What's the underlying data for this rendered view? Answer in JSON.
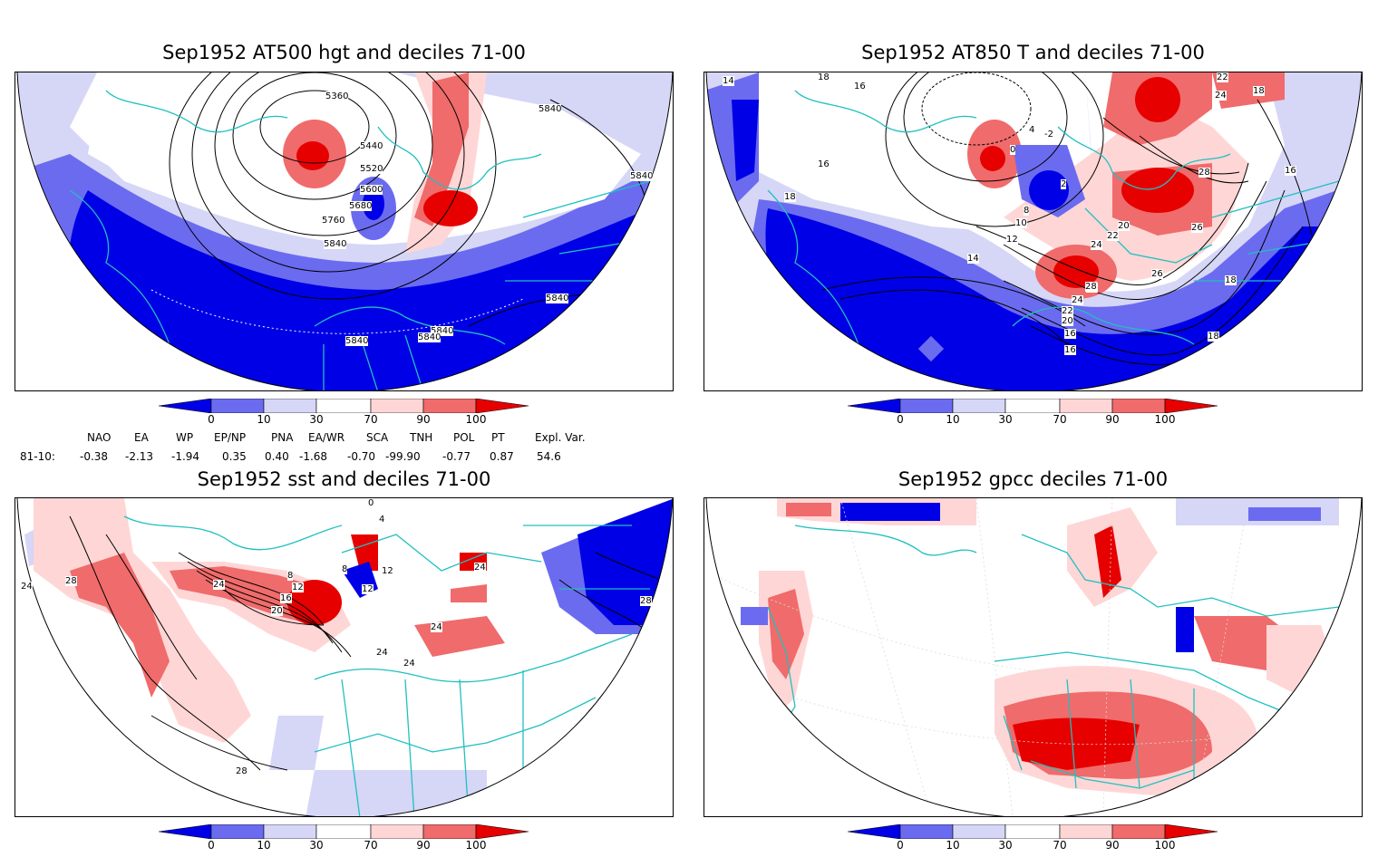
{
  "panels": [
    {
      "id": "hgt500",
      "title": "Sep1952 AT500 hgt and deciles 71-00",
      "contour_labels": [
        "5360",
        "5440",
        "5520",
        "5600",
        "5680",
        "5760",
        "5840",
        "5840",
        "5840",
        "5840",
        "5840",
        "5840",
        "5840"
      ]
    },
    {
      "id": "t850",
      "title": "Sep1952 AT850 T and deciles 71-00",
      "contour_labels": [
        "16",
        "18",
        "16",
        "14",
        "18",
        "12",
        "10",
        "8",
        "2",
        "-2",
        "0",
        "4",
        "14",
        "20",
        "22",
        "24",
        "26",
        "28",
        "26",
        "24",
        "22",
        "20",
        "18",
        "16",
        "16",
        "16",
        "18",
        "18",
        "22",
        "24",
        "26",
        "28"
      ]
    },
    {
      "id": "sst",
      "title": "Sep1952 sst and deciles 71-00",
      "contour_labels": [
        "0",
        "4",
        "8",
        "12",
        "16",
        "20",
        "24",
        "24",
        "24",
        "24",
        "24",
        "28",
        "28",
        "28",
        "12",
        "8",
        "12",
        "24"
      ]
    },
    {
      "id": "gpcc",
      "title": "Sep1952 gpcc deciles 71-00",
      "contour_labels": []
    }
  ],
  "colorbar": {
    "ticks": [
      "0",
      "10",
      "30",
      "70",
      "90",
      "100"
    ],
    "colors": [
      "#0000e6",
      "#6b6bf0",
      "#d6d6f7",
      "#ffffff",
      "#ffd6d6",
      "#f06b6b",
      "#e60000"
    ]
  },
  "indices": {
    "headers": [
      "NAO",
      "EA",
      "WP",
      "EP/NP",
      "PNA",
      "EA/WR",
      "SCA",
      "TNH",
      "POL",
      "PT",
      "Expl. Var."
    ],
    "row_label": "81-10:",
    "values": [
      "-0.38",
      "-2.13",
      "-1.94",
      "0.35",
      "0.40",
      "-1.68",
      "-0.70",
      "-99.90",
      "-0.77",
      "0.87",
      "54.6"
    ]
  },
  "colors": {
    "coast": "#20c0c0",
    "strong_blue": "#0000e6",
    "mid_blue": "#6b6bf0",
    "light_blue": "#d6d6f7",
    "light_red": "#ffd6d6",
    "mid_red": "#f06b6b",
    "strong_red": "#e60000"
  }
}
